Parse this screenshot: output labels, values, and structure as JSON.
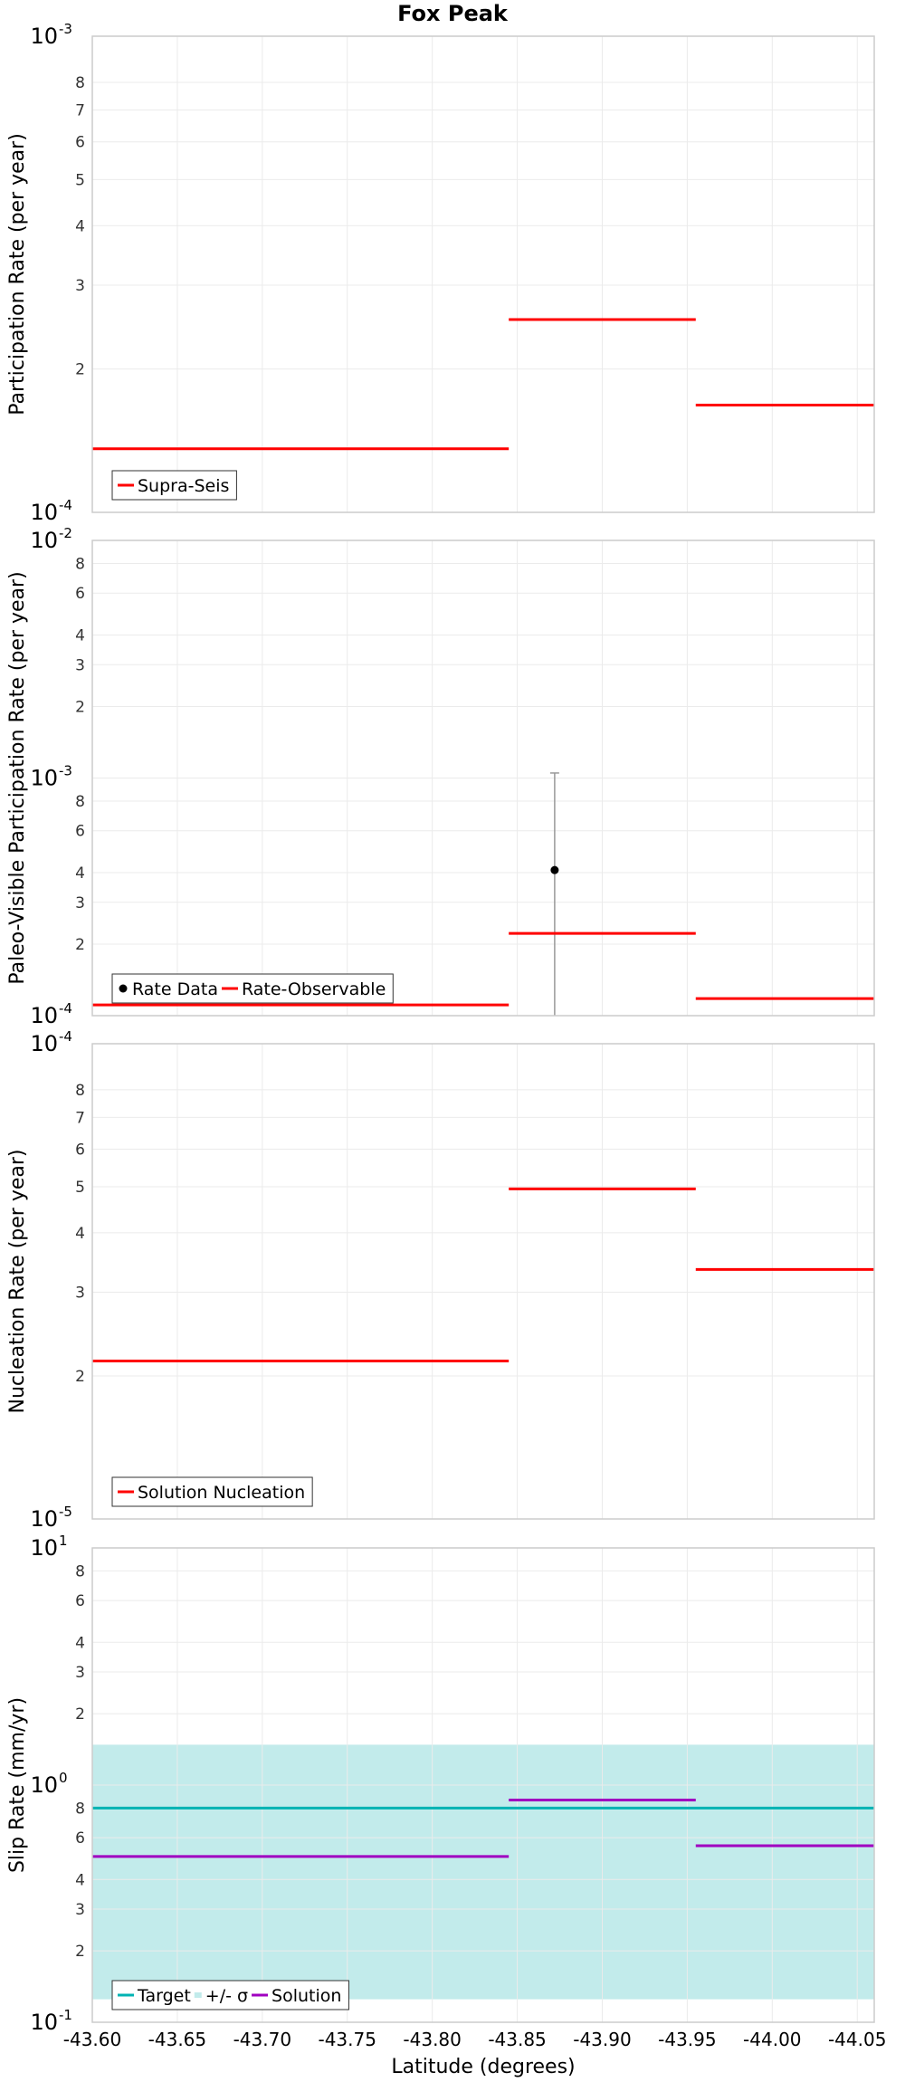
{
  "title": "Fox Peak",
  "xlabel": "Latitude (degrees)",
  "x_range": [
    -43.6,
    -44.06
  ],
  "x_ticks": [
    "-43.60",
    "-43.65",
    "-43.70",
    "-43.75",
    "-43.80",
    "-43.85",
    "-43.90",
    "-43.95",
    "-44.00",
    "-44.05"
  ],
  "colors": {
    "red": "#ff0000",
    "teal": "#00b3b3",
    "band": "#c2ebeb",
    "magenta": "#a000c0",
    "grid": "#ebebeb",
    "frame": "#cccccc",
    "errorbar": "#999999"
  },
  "chart_data": [
    {
      "id": "participation",
      "type": "line",
      "ylabel": "Participation Rate (per year)",
      "ylim": [
        0.0001,
        0.001
      ],
      "scale": "log",
      "y_major": [
        {
          "base": "10",
          "exp": "-3",
          "value": 0.001
        },
        {
          "base": "10",
          "exp": "-4",
          "value": 0.0001
        }
      ],
      "y_minor": [
        {
          "label": "8",
          "value": 0.0008
        },
        {
          "label": "7",
          "value": 0.0007
        },
        {
          "label": "6",
          "value": 0.0006
        },
        {
          "label": "5",
          "value": 0.0005
        },
        {
          "label": "4",
          "value": 0.0004
        },
        {
          "label": "3",
          "value": 0.0003
        },
        {
          "label": "2",
          "value": 0.0002
        }
      ],
      "series": [
        {
          "name": "Supra-Seis",
          "color": "red",
          "segments": [
            {
              "x0": -43.6,
              "x1": -43.845,
              "y": 0.000136
            },
            {
              "x0": -43.845,
              "x1": -43.955,
              "y": 0.000254
            },
            {
              "x0": -43.955,
              "x1": -44.06,
              "y": 0.000168
            }
          ]
        }
      ],
      "legend": [
        {
          "label": "Supra-Seis",
          "symbol": "line",
          "color": "red"
        }
      ]
    },
    {
      "id": "paleo",
      "type": "line",
      "ylabel": "Paleo-Visible Participation Rate (per year)",
      "ylim": [
        0.0001,
        0.01
      ],
      "scale": "log",
      "y_major": [
        {
          "base": "10",
          "exp": "-2",
          "value": 0.01
        },
        {
          "base": "10",
          "exp": "-3",
          "value": 0.001
        },
        {
          "base": "10",
          "exp": "-4",
          "value": 0.0001
        }
      ],
      "y_minor": [
        {
          "label": "8",
          "value": 0.008
        },
        {
          "label": "6",
          "value": 0.006
        },
        {
          "label": "4",
          "value": 0.004
        },
        {
          "label": "3",
          "value": 0.003
        },
        {
          "label": "2",
          "value": 0.002
        },
        {
          "label": "8",
          "value": 0.0008
        },
        {
          "label": "6",
          "value": 0.0006
        },
        {
          "label": "4",
          "value": 0.0004
        },
        {
          "label": "3",
          "value": 0.0003
        },
        {
          "label": "2",
          "value": 0.0002
        }
      ],
      "series": [
        {
          "name": "Rate-Observable",
          "color": "red",
          "segments": [
            {
              "x0": -43.6,
              "x1": -43.845,
              "y": 0.000111
            },
            {
              "x0": -43.845,
              "x1": -43.955,
              "y": 0.000222
            },
            {
              "x0": -43.955,
              "x1": -44.06,
              "y": 0.000118
            }
          ]
        }
      ],
      "points": [
        {
          "name": "Rate Data",
          "x": -43.872,
          "y": 0.00041,
          "ylow": 0.0001,
          "yhigh": 0.00105
        }
      ],
      "legend": [
        {
          "label": "Rate Data",
          "symbol": "dot",
          "color": "black"
        },
        {
          "label": "Rate-Observable",
          "symbol": "line",
          "color": "red"
        }
      ]
    },
    {
      "id": "nucleation",
      "type": "line",
      "ylabel": "Nucleation Rate (per year)",
      "ylim": [
        1e-05,
        0.0001
      ],
      "scale": "log",
      "y_major": [
        {
          "base": "10",
          "exp": "-4",
          "value": 0.0001
        },
        {
          "base": "10",
          "exp": "-5",
          "value": 1e-05
        }
      ],
      "y_minor": [
        {
          "label": "8",
          "value": 8e-05
        },
        {
          "label": "7",
          "value": 7e-05
        },
        {
          "label": "6",
          "value": 6e-05
        },
        {
          "label": "5",
          "value": 5e-05
        },
        {
          "label": "4",
          "value": 4e-05
        },
        {
          "label": "3",
          "value": 3e-05
        },
        {
          "label": "2",
          "value": 2e-05
        }
      ],
      "series": [
        {
          "name": "Solution Nucleation",
          "color": "red",
          "segments": [
            {
              "x0": -43.6,
              "x1": -43.845,
              "y": 2.15e-05
            },
            {
              "x0": -43.845,
              "x1": -43.955,
              "y": 4.95e-05
            },
            {
              "x0": -43.955,
              "x1": -44.06,
              "y": 3.35e-05
            }
          ]
        }
      ],
      "legend": [
        {
          "label": "Solution Nucleation",
          "symbol": "line",
          "color": "red"
        }
      ]
    },
    {
      "id": "slip",
      "type": "line",
      "ylabel": "Slip Rate (mm/yr)",
      "ylim": [
        0.1,
        10
      ],
      "scale": "log",
      "y_major": [
        {
          "base": "10",
          "exp": "1",
          "value": 10
        },
        {
          "base": "10",
          "exp": "0",
          "value": 1
        },
        {
          "base": "10",
          "exp": "-1",
          "value": 0.1
        }
      ],
      "y_minor": [
        {
          "label": "8",
          "value": 8
        },
        {
          "label": "6",
          "value": 6
        },
        {
          "label": "4",
          "value": 4
        },
        {
          "label": "3",
          "value": 3
        },
        {
          "label": "2",
          "value": 2
        },
        {
          "label": "8",
          "value": 0.8
        },
        {
          "label": "6",
          "value": 0.6
        },
        {
          "label": "4",
          "value": 0.4
        },
        {
          "label": "3",
          "value": 0.3
        },
        {
          "label": "2",
          "value": 0.2
        }
      ],
      "band": {
        "name": "+/- σ",
        "ylow": 0.125,
        "yhigh": 1.48,
        "x0": -43.6,
        "x1": -44.06
      },
      "series": [
        {
          "name": "Target",
          "color": "teal",
          "segments": [
            {
              "x0": -43.6,
              "x1": -44.06,
              "y": 0.8
            }
          ]
        },
        {
          "name": "Solution",
          "color": "magenta",
          "segments": [
            {
              "x0": -43.6,
              "x1": -43.845,
              "y": 0.5
            },
            {
              "x0": -43.845,
              "x1": -43.955,
              "y": 0.865
            },
            {
              "x0": -43.955,
              "x1": -44.06,
              "y": 0.555
            }
          ]
        }
      ],
      "legend": [
        {
          "label": "Target",
          "symbol": "line",
          "color": "teal"
        },
        {
          "label": "+/- σ",
          "symbol": "band",
          "color": "band"
        },
        {
          "label": "Solution",
          "symbol": "line",
          "color": "magenta"
        }
      ]
    }
  ]
}
